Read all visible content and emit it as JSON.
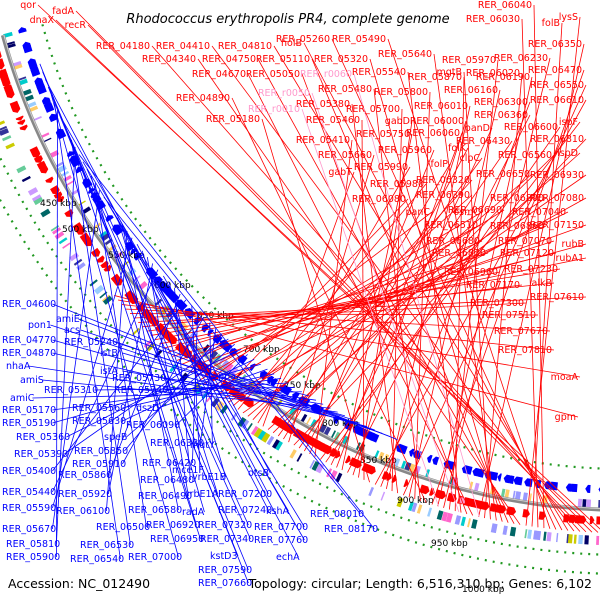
{
  "title": "Rhodococcus erythropolis PR4, complete genome",
  "accession": "Accession: NC_012490",
  "summary": "Topology: circular; Length: 6,516,310 bp; Genes: 6,102",
  "genome_length": 6516310,
  "colors": {
    "plus_strand": "#ff0000",
    "minus_strand": "#0000ff",
    "rna": "#ff99cc",
    "backbone": "#888888",
    "dots": "#229922"
  },
  "tick_labels": [
    "450 kbp",
    "500 kbp",
    "550 kbp",
    "600 kbp",
    "650 kbp",
    "700 kbp",
    "750 kbp",
    "800 kbp",
    "850 kbp",
    "900 kbp",
    "950 kbp",
    "1000 kbp"
  ],
  "red_labels": [
    "qor",
    "dnaX",
    "fadA",
    "recR",
    "RER_04180",
    "RER_04410",
    "RER_04810",
    "holB",
    "RER_05260",
    "RER_05490",
    "RER_06040",
    "RER_06030",
    "folB",
    "lysS",
    "RER_04340",
    "RER_04750",
    "RER_05110",
    "RER_05320",
    "RER_05640",
    "mgtB",
    "RER_06020",
    "RER_06350",
    "RER_04670",
    "RER_05050",
    "RER_05540",
    "RER_05870",
    "RER_05970",
    "RER_06230",
    "RER_06190",
    "RER_06470",
    "RER_04890",
    "RER_05480",
    "RER_05800",
    "RER_06160",
    "RER_06550",
    "RER_05380",
    "RER_05700",
    "RER_06010",
    "RER_06300",
    "RER_06610",
    "RER_05180",
    "RER_05460",
    "gabD",
    "RER_06000",
    "RER_06360",
    "RER_05750",
    "RER_06060",
    "panD",
    "RER_06600",
    "ispF",
    "RER_05410",
    "RER_05960",
    "folK",
    "RER_06430",
    "RER_06810",
    "RER_05660",
    "folP",
    "clpC",
    "RER_06560",
    "ispD",
    "gabT",
    "RER_05990",
    "RER_06320",
    "RER_06650",
    "RER_06930",
    "RER_05980",
    "RER_06390",
    "RER_06800",
    "RER_07080",
    "RER_06080",
    "RER_06690",
    "RER_07040",
    "panC",
    "osmC",
    "RER_06510",
    "RER_06860",
    "RER_07150",
    "RER_06680",
    "RER_07070",
    "rubB",
    "RER_06830",
    "RER_07120",
    "rubA1",
    "RER_06960",
    "RER_07230",
    "RER_07170",
    "alkB",
    "RER_07300",
    "RER_07610",
    "RER_07510",
    "RER_07670",
    "RER_07810",
    "moaA",
    "gpm"
  ],
  "pink_labels": [
    "RER_r0060",
    "RER_r0050",
    "RER_r0010"
  ],
  "blue_labels": [
    "RER_04600",
    "amiE",
    "pon1",
    "acs",
    "RER_04770",
    "RER_04870",
    "RER_05240",
    "istB",
    "nhaA",
    "amiS",
    "istA",
    "RER_05730",
    "ppa",
    "amiC",
    "RER_05310",
    "RER_05740",
    "RER_05170",
    "RER_05560",
    "dszD",
    "RER_05190",
    "RER_05630",
    "RER_06090",
    "RER_05360",
    "speB",
    "RER_05390",
    "RER_05850",
    "RER_06380",
    "mutY",
    "RER_05910",
    "RER_06420",
    "mce1F",
    "RER_05400",
    "RER_05860",
    "RER_06480",
    "yrbE1B",
    "otsB",
    "RER_05440",
    "RER_05920",
    "RER_06490",
    "yrbE1A",
    "RER_07200",
    "RER_05590",
    "RER_06100",
    "RER_06580",
    "radA",
    "RER_07240",
    "kshA",
    "RER_08010",
    "RER_05670",
    "RER_06500",
    "RER_06920",
    "RER_07320",
    "RER_07700",
    "RER_08170",
    "RER_05810",
    "RER_06530",
    "RER_06950",
    "RER_07340",
    "RER_07760",
    "RER_05900",
    "RER_06540",
    "RER_07000",
    "kstD3",
    "echA",
    "RER_07590",
    "RER_07660"
  ]
}
